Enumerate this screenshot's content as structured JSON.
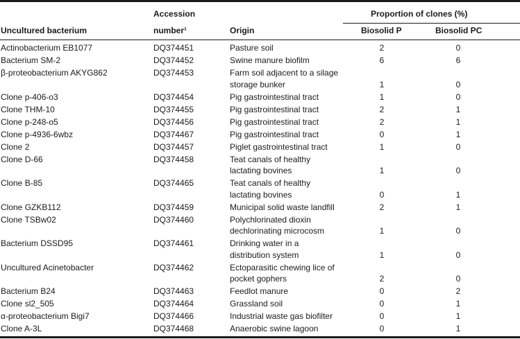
{
  "header": {
    "col_bacterium": "Uncultured bacterium",
    "col_accession_line1": "Accession",
    "col_accession_line2": "number¹",
    "col_origin": "Origin",
    "group_proportion": "Proportion of clones (%)",
    "col_biosolid_p": "Biosolid P",
    "col_biosolid_pc": "Biosolid PC"
  },
  "rows": [
    {
      "name": "Actinobacterium EB1077",
      "accession": "DQ374451",
      "origin": [
        "Pasture soil"
      ],
      "p": "2",
      "pc": "0"
    },
    {
      "name": "Bacterium SM-2",
      "accession": "DQ374452",
      "origin": [
        "Swine manure biofilm"
      ],
      "p": "6",
      "pc": "6"
    },
    {
      "name": "β-proteobacterium AKYG862",
      "accession": "DQ374453",
      "origin": [
        "Farm soil adjacent to a silage",
        "storage bunker"
      ],
      "p": "1",
      "pc": "0"
    },
    {
      "name": "Clone p-406-o3",
      "accession": "DQ374454",
      "origin": [
        "Pig gastrointestinal tract"
      ],
      "p": "1",
      "pc": "0"
    },
    {
      "name": "Clone THM-10",
      "accession": "DQ374455",
      "origin": [
        "Pig gastrointestinal tract"
      ],
      "p": "2",
      "pc": "1"
    },
    {
      "name": "Clone p-248-o5",
      "accession": "DQ374456",
      "origin": [
        "Pig gastrointestinal tract"
      ],
      "p": "2",
      "pc": "1"
    },
    {
      "name": "Clone p-4936-6wbz",
      "accession": "DQ374467",
      "origin": [
        "Pig gastrointestinal tract"
      ],
      "p": "0",
      "pc": "1"
    },
    {
      "name": "Clone 2",
      "accession": "DQ374457",
      "origin": [
        "Piglet gastrointestinal tract"
      ],
      "p": "1",
      "pc": "0"
    },
    {
      "name": "Clone D-66",
      "accession": "DQ374458",
      "origin": [
        "Teat canals of healthy",
        "lactating bovines"
      ],
      "p": "1",
      "pc": "0"
    },
    {
      "name": "Clone B-85",
      "accession": "DQ374465",
      "origin": [
        "Teat canals of healthy",
        "lactating bovines"
      ],
      "p": "0",
      "pc": "1"
    },
    {
      "name": "Clone GZKB112",
      "accession": "DQ374459",
      "origin": [
        "Municipal solid waste landfill"
      ],
      "p": "2",
      "pc": "1"
    },
    {
      "name": "Clone TSBw02",
      "accession": "DQ374460",
      "origin": [
        "Polychlorinated dioxin",
        "dechlorinating microcosm"
      ],
      "p": "1",
      "pc": "0"
    },
    {
      "name": "Bacterium DSSD95",
      "accession": "DQ374461",
      "origin": [
        "Drinking water in a",
        "distribution system"
      ],
      "p": "1",
      "pc": "0"
    },
    {
      "name": "Uncultured Acinetobacter",
      "accession": "DQ374462",
      "origin": [
        "Ectoparasitic chewing lice of",
        "pocket gophers"
      ],
      "p": "2",
      "pc": "0"
    },
    {
      "name": "Bacterium B24",
      "accession": "DQ374463",
      "origin": [
        "Feedlot manure"
      ],
      "p": "0",
      "pc": "2"
    },
    {
      "name": "Clone sl2_505",
      "accession": "DQ374464",
      "origin": [
        "Grassland soil"
      ],
      "p": "0",
      "pc": "1"
    },
    {
      "name": "α-proteobacterium Bigi7",
      "accession": "DQ374466",
      "origin": [
        "Industrial waste gas biofilter"
      ],
      "p": "0",
      "pc": "1"
    },
    {
      "name": "Clone A-3L",
      "accession": "DQ374468",
      "origin": [
        "Anaerobic swine lagoon"
      ],
      "p": "0",
      "pc": "1"
    }
  ]
}
